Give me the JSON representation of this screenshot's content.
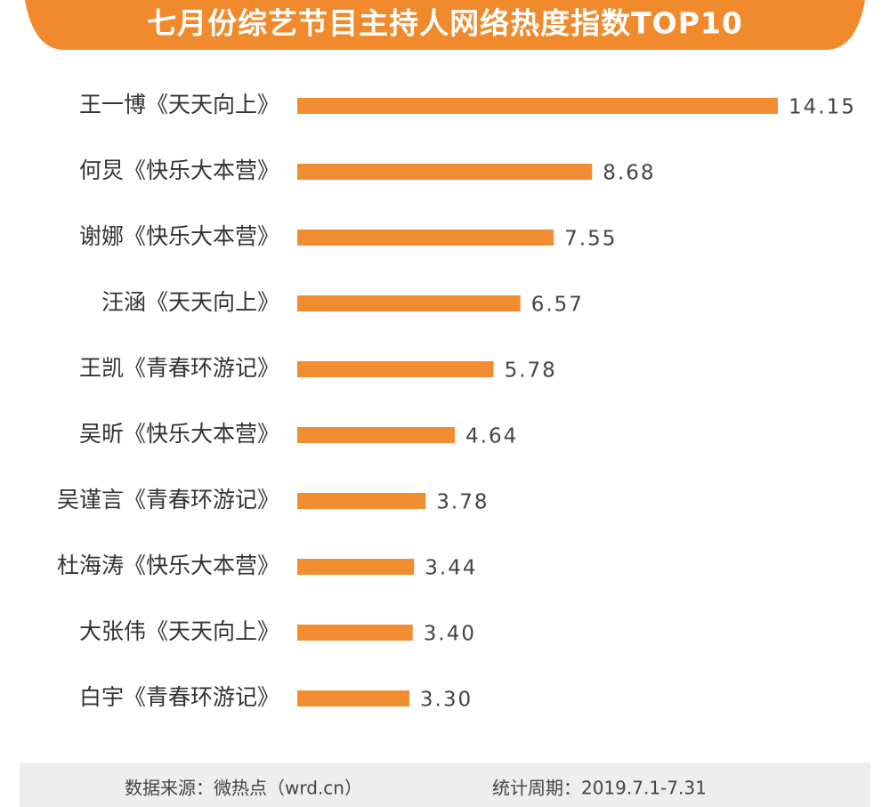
{
  "chart_data": {
    "type": "bar",
    "orientation": "horizontal",
    "title": "七月份综艺节目主持人网络热度指数TOP10",
    "categories": [
      "王一博《天天向上》",
      "何炅《快乐大本营》",
      "谢娜《快乐大本营》",
      "汪涵《天天向上》",
      "王凯《青春环游记》",
      "吴昕《快乐大本营》",
      "吴谨言《青春环游记》",
      "杜海涛《快乐大本营》",
      "大张伟《天天向上》",
      "白宇《青春环游记》"
    ],
    "values": [
      14.15,
      8.68,
      7.55,
      6.57,
      5.78,
      4.64,
      3.78,
      3.44,
      3.4,
      3.3
    ],
    "value_labels": [
      "14.15",
      "8.68",
      "7.55",
      "6.57",
      "5.78",
      "4.64",
      "3.78",
      "3.44",
      "3.40",
      "3.30"
    ],
    "color": "#f28c30",
    "source": "数据来源：微热点（wrd.cn）",
    "period": "统计周期：2019.7.1-7.31"
  }
}
